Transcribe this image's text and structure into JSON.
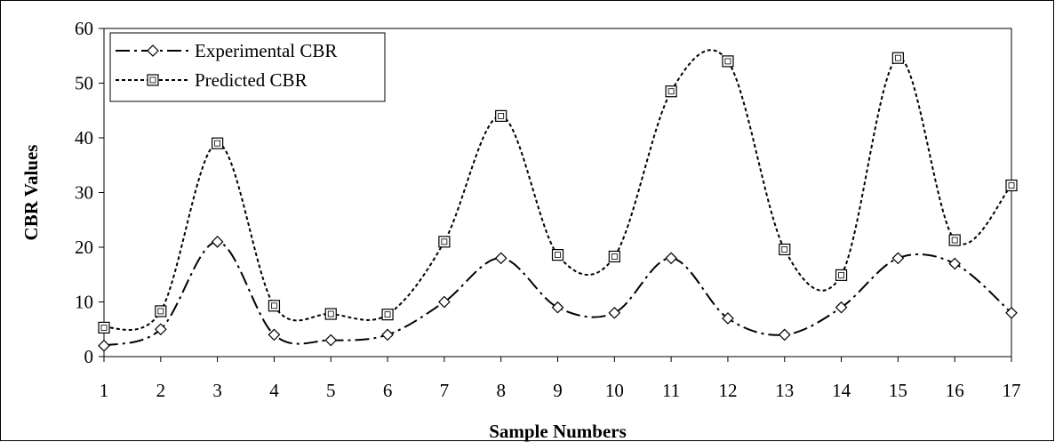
{
  "chart_data": {
    "type": "line",
    "x": [
      1,
      2,
      3,
      4,
      5,
      6,
      7,
      8,
      9,
      10,
      11,
      12,
      13,
      14,
      15,
      16,
      17
    ],
    "xlabel": "Sample Numbers",
    "ylabel": "CBR Values",
    "xlim": [
      1,
      17
    ],
    "ylim": [
      0,
      60
    ],
    "yticks": [
      0,
      10,
      20,
      30,
      40,
      50,
      60
    ],
    "grid": false,
    "legend_position": "top-left",
    "smooth": true,
    "series": [
      {
        "name": "Experimental CBR",
        "marker": "diamond",
        "line_style": "dash-dot",
        "color": "#000000",
        "values": [
          2,
          5,
          21,
          4,
          3,
          4,
          10,
          18,
          9,
          8,
          18,
          7,
          4,
          9,
          18,
          17,
          8
        ]
      },
      {
        "name": "Predicted CBR",
        "marker": "square",
        "line_style": "dotted",
        "color": "#000000",
        "values": [
          5.3,
          8.3,
          39,
          9.3,
          7.8,
          7.7,
          21,
          44,
          18.6,
          18.3,
          48.5,
          54,
          19.6,
          14.9,
          54.6,
          21.3,
          31.3
        ]
      }
    ]
  }
}
